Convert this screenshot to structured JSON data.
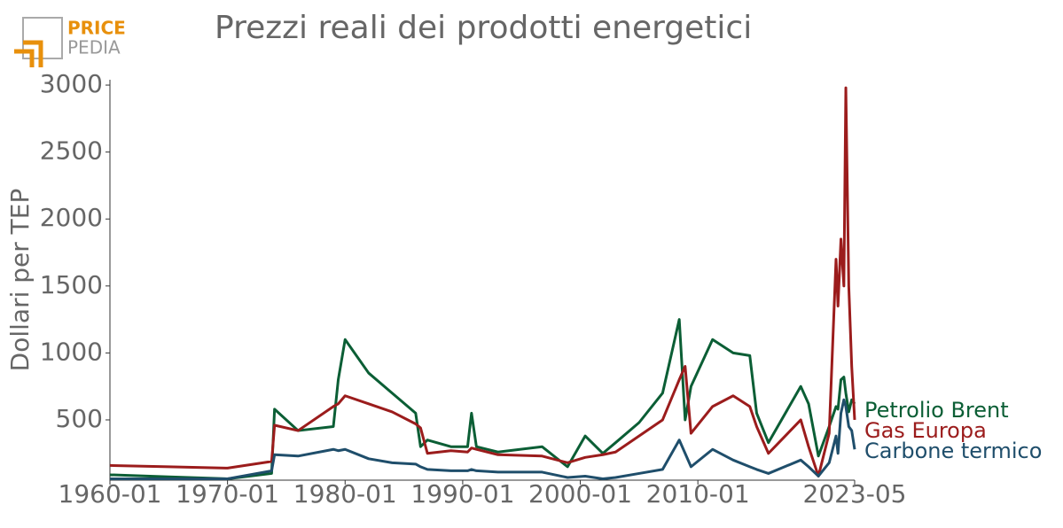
{
  "logo": {
    "top": "PRICE",
    "bottom": "PEDIA"
  },
  "chart_data": {
    "type": "line",
    "title": "Prezzi reali dei prodotti energetici",
    "y_label": "Dollari per TEP",
    "x": [
      "1960-01",
      "1965-01",
      "1970-01",
      "1973-10",
      "1974-01",
      "1976-01",
      "1979-01",
      "1979-06",
      "1980-01",
      "1982-01",
      "1984-01",
      "1986-01",
      "1986-06",
      "1987-01",
      "1989-01",
      "1990-06",
      "1990-10",
      "1991-03",
      "1993-01",
      "1996-10",
      "1998-12",
      "2000-06",
      "2001-12",
      "2003-01",
      "2005-01",
      "2007-01",
      "2008-06",
      "2008-12",
      "2009-06",
      "2011-04",
      "2013-01",
      "2014-06",
      "2015-01",
      "2016-01",
      "2018-10",
      "2019-06",
      "2020-04",
      "2021-03",
      "2021-10",
      "2021-12",
      "2022-03",
      "2022-06",
      "2022-08",
      "2022-11",
      "2023-02",
      "2023-05"
    ],
    "series": [
      {
        "name": "Petrolio Brent",
        "color": "#0b5e35",
        "values": [
          90,
          75,
          60,
          100,
          580,
          420,
          450,
          800,
          1100,
          850,
          700,
          550,
          300,
          350,
          300,
          300,
          550,
          300,
          260,
          300,
          150,
          380,
          250,
          330,
          480,
          700,
          1250,
          500,
          750,
          1100,
          1000,
          980,
          550,
          330,
          750,
          620,
          230,
          450,
          600,
          580,
          800,
          820,
          700,
          560,
          650,
          620
        ]
      },
      {
        "name": "Gas Europa",
        "color": "#9b1c1c",
        "values": [
          160,
          150,
          140,
          190,
          460,
          420,
          600,
          620,
          680,
          620,
          560,
          470,
          440,
          250,
          270,
          260,
          290,
          280,
          240,
          230,
          180,
          220,
          240,
          260,
          380,
          500,
          800,
          900,
          400,
          600,
          680,
          600,
          450,
          250,
          500,
          300,
          80,
          400,
          1700,
          1350,
          1850,
          1500,
          2980,
          1500,
          900,
          500
        ]
      },
      {
        "name": "Carbone termico",
        "color": "#1f4e6b",
        "values": [
          60,
          60,
          60,
          120,
          240,
          230,
          280,
          270,
          280,
          210,
          180,
          170,
          150,
          130,
          120,
          120,
          130,
          120,
          110,
          110,
          70,
          80,
          60,
          70,
          100,
          130,
          350,
          250,
          150,
          280,
          200,
          150,
          130,
          100,
          200,
          150,
          80,
          180,
          380,
          250,
          550,
          650,
          600,
          450,
          420,
          280
        ]
      }
    ],
    "xlim": [
      "1960-01",
      "2023-05"
    ],
    "xticks": [
      "1960-01",
      "1970-01",
      "1980-01",
      "1990-01",
      "2000-01",
      "2010-01",
      "2023-05"
    ],
    "ylim": [
      50,
      3040
    ],
    "yticks": [
      500,
      1000,
      1500,
      2000,
      2500,
      3000
    ],
    "grid": false
  }
}
